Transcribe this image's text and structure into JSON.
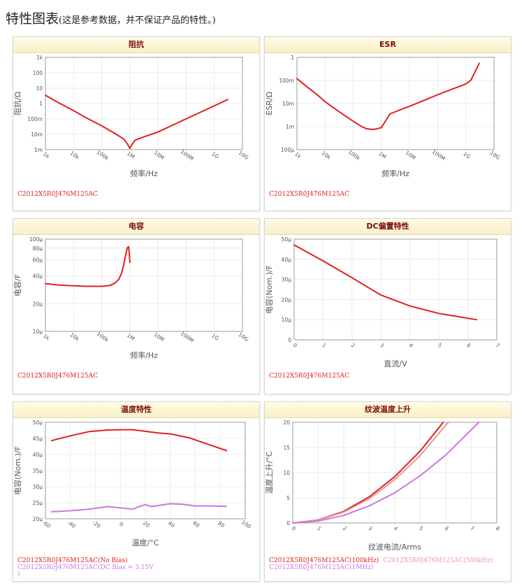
{
  "page": {
    "title": "特性图表",
    "note": "(这是参考数据，并不保证产品的特性。)"
  },
  "chart_data": [
    {
      "id": "impedance",
      "type": "line",
      "title": "阻抗",
      "xlabel": "频率/Hz",
      "ylabel": "阻抗/Ω",
      "xscale": "log",
      "yscale": "log",
      "xlim": [
        1000,
        10000000000
      ],
      "ylim": [
        0.001,
        1000
      ],
      "xticks": [
        1000,
        10000,
        100000,
        1000000,
        10000000,
        100000000,
        1000000000,
        10000000000
      ],
      "xticklabels": [
        "1k",
        "10k",
        "100k",
        "1M",
        "10M",
        "100M",
        "1G",
        "10G"
      ],
      "yticks": [
        0.001,
        0.01,
        0.1,
        1,
        10,
        100,
        1000
      ],
      "yticklabels": [
        "1m",
        "10m",
        "100m",
        "1",
        "10",
        "100",
        "1k"
      ],
      "series": [
        {
          "name": "C2012X5R0J476M125AC",
          "color": "#e0201f",
          "x": [
            1000,
            3000,
            10000,
            30000,
            100000,
            300000,
            600000,
            800000,
            1000000,
            1200000,
            1500000,
            2000000,
            3000000,
            10000000,
            100000000,
            1000000000,
            3000000000
          ],
          "y": [
            3.4,
            1.1,
            0.34,
            0.11,
            0.035,
            0.011,
            0.005,
            0.0025,
            0.0012,
            0.0022,
            0.004,
            0.005,
            0.0065,
            0.014,
            0.1,
            0.7,
            1.8
          ]
        }
      ],
      "legend": [
        "C2012X5R0J476M125AC"
      ]
    },
    {
      "id": "esr",
      "type": "line",
      "title": "ESR",
      "xlabel": "频率/Hz",
      "ylabel": "ESR/Ω",
      "xscale": "log",
      "yscale": "log",
      "xlim": [
        1000,
        10000000000
      ],
      "ylim": [
        0.0001,
        1
      ],
      "xticks": [
        1000,
        10000,
        100000,
        1000000,
        10000000,
        100000000,
        1000000000,
        10000000000
      ],
      "xticklabels": [
        "1k",
        "10k",
        "100k",
        "1M",
        "10M",
        "100M",
        "1G",
        "10G"
      ],
      "yticks": [
        0.0001,
        0.001,
        0.01,
        0.1,
        1
      ],
      "yticklabels": [
        "100μ",
        "1m",
        "10m",
        "100m",
        "1"
      ],
      "series": [
        {
          "name": "C2012X5R0J476M125AC",
          "color": "#e0201f",
          "x": [
            1000,
            2000,
            5000,
            10000,
            20000,
            50000,
            100000,
            200000,
            300000,
            500000,
            700000,
            1000000,
            1500000,
            2000000,
            5000000,
            10000000,
            30000000,
            100000000,
            300000000,
            600000000,
            1000000000,
            1500000000,
            2000000000,
            3000000000
          ],
          "y": [
            0.12,
            0.06,
            0.025,
            0.012,
            0.0065,
            0.003,
            0.0017,
            0.001,
            0.0008,
            0.00075,
            0.0008,
            0.0009,
            0.002,
            0.0035,
            0.0055,
            0.0075,
            0.013,
            0.024,
            0.04,
            0.055,
            0.07,
            0.1,
            0.2,
            0.55
          ]
        }
      ],
      "legend": [
        "C2012X5R0J476M125AC"
      ]
    },
    {
      "id": "capacitance",
      "type": "line",
      "title": "电容",
      "xlabel": "频率/Hz",
      "ylabel": "电容/F",
      "xscale": "log",
      "yscale": "log",
      "xlim": [
        1000,
        10000000000
      ],
      "ylim": [
        1e-05,
        0.0001
      ],
      "xticks": [
        1000,
        10000,
        100000,
        1000000,
        10000000,
        100000000,
        1000000000,
        10000000000
      ],
      "xticklabels": [
        "1k",
        "10k",
        "100k",
        "1M",
        "10M",
        "100M",
        "1G",
        "10G"
      ],
      "yticks": [
        1e-05,
        2e-05,
        4e-05,
        6e-05,
        8e-05,
        0.0001
      ],
      "yticklabels": [
        "10μ",
        "20μ",
        "40μ",
        "60μ",
        "80μ",
        "100μ"
      ],
      "series": [
        {
          "name": "C2012X5R0J476M125AC",
          "color": "#e0201f",
          "x": [
            1000,
            3000,
            10000,
            30000,
            100000,
            200000,
            300000,
            400000,
            500000,
            600000,
            700000,
            800000,
            900000,
            950000,
            1000000
          ],
          "y": [
            3.3e-05,
            3.18e-05,
            3.12e-05,
            3.08e-05,
            3.08e-05,
            3.15e-05,
            3.35e-05,
            3.65e-05,
            4.2e-05,
            5.2e-05,
            6.6e-05,
            8e-05,
            8.3e-05,
            7e-05,
            5.6e-05
          ]
        }
      ],
      "legend": [
        "C2012X5R0J476M125AC"
      ]
    },
    {
      "id": "dc-bias",
      "type": "line",
      "title": "DC偏置特性",
      "xlabel": "直流/V",
      "ylabel": "电容(Nom.)/F",
      "xlim": [
        0,
        7
      ],
      "ylim": [
        0,
        5e-05
      ],
      "xticks": [
        0,
        1,
        2,
        3,
        4,
        5,
        6,
        7
      ],
      "xticklabels": [
        "0",
        "1",
        "2",
        "3",
        "4",
        "5",
        "6",
        "7"
      ],
      "yticks": [
        0,
        1e-05,
        2e-05,
        3e-05,
        4e-05,
        5e-05
      ],
      "yticklabels": [
        "0",
        "10μ",
        "20μ",
        "30μ",
        "40μ",
        "50μ"
      ],
      "series": [
        {
          "name": "C2012X5R0J476M125AC",
          "color": "#e0201f",
          "x": [
            0,
            1,
            2,
            3,
            4,
            5,
            6,
            6.3
          ],
          "y": [
            4.71e-05,
            3.92e-05,
            3.08e-05,
            2.22e-05,
            1.68e-05,
            1.31e-05,
            1.07e-05,
            1e-05
          ]
        }
      ],
      "legend": [
        "C2012X5R0J476M125AC"
      ]
    },
    {
      "id": "temperature",
      "type": "line",
      "title": "温度特性",
      "xlabel": "温度/°C",
      "ylabel": "电容(Nom.)/F",
      "xlim": [
        -60,
        100
      ],
      "ylim": [
        2e-05,
        5e-05
      ],
      "xticks": [
        -60,
        -40,
        -20,
        0,
        20,
        40,
        60,
        80,
        100
      ],
      "xticklabels": [
        "-60",
        "-40",
        "-20",
        "0",
        "20",
        "40",
        "60",
        "80",
        "100"
      ],
      "yticks": [
        2e-05,
        2.5e-05,
        3e-05,
        3.5e-05,
        4e-05,
        4.5e-05,
        5e-05
      ],
      "yticklabels": [
        "20μ",
        "25μ",
        "30μ",
        "35μ",
        "40μ",
        "45μ",
        "50μ"
      ],
      "series": [
        {
          "name": "C2012X5R0J476M125AC(No Bias)",
          "color": "#e0201f",
          "x": [
            -55,
            -40,
            -25,
            -10,
            0,
            10,
            20,
            30,
            40,
            55,
            70,
            85
          ],
          "y": [
            4.43e-05,
            4.58e-05,
            4.71e-05,
            4.76e-05,
            4.77e-05,
            4.77e-05,
            4.72e-05,
            4.67e-05,
            4.64e-05,
            4.52e-05,
            4.32e-05,
            4.12e-05
          ]
        },
        {
          "name": "C2012X5R0J476M125AC(DC Bias = 3.15V)",
          "color": "#cc77e0",
          "x": [
            -55,
            -40,
            -25,
            -10,
            0,
            10,
            15,
            20,
            25,
            35,
            40,
            50,
            60,
            70,
            85
          ],
          "y": [
            2.22e-05,
            2.25e-05,
            2.3e-05,
            2.38e-05,
            2.34e-05,
            2.3e-05,
            2.38e-05,
            2.44e-05,
            2.38e-05,
            2.44e-05,
            2.47e-05,
            2.45e-05,
            2.4e-05,
            2.4e-05,
            2.39e-05
          ]
        }
      ],
      "legend": [
        "C2012X5R0J476M125AC(No Bias)",
        "C2012X5R0J476M125AC(DC Bias = 3.15V\n)"
      ]
    },
    {
      "id": "ripple",
      "type": "line",
      "title": "纹波温度上升",
      "xlabel": "纹波电流/Arms",
      "ylabel": "温度上升/°C",
      "xlim": [
        0,
        8
      ],
      "ylim": [
        0,
        20
      ],
      "xticks": [
        0,
        1,
        2,
        3,
        4,
        5,
        6,
        7,
        8
      ],
      "xticklabels": [
        "0",
        "1",
        "2",
        "3",
        "4",
        "5",
        "6",
        "7",
        "8"
      ],
      "yticks": [
        0,
        5,
        10,
        15,
        20
      ],
      "yticklabels": [
        "0",
        "5",
        "10",
        "15",
        "20"
      ],
      "series": [
        {
          "name": "C2012X5R0J476M125AC(100kHz)",
          "color": "#e0201f",
          "x": [
            0,
            1,
            2,
            3,
            4,
            5,
            5.9
          ],
          "y": [
            0,
            0.6,
            2.3,
            5.2,
            9.2,
            14.3,
            20
          ]
        },
        {
          "name": "C2012X5R0J476M125AC(500kHz)",
          "color": "#e59a9a",
          "x": [
            0,
            1,
            2,
            3,
            4,
            5,
            6.1
          ],
          "y": [
            0,
            0.54,
            2.15,
            4.8,
            8.6,
            13.4,
            20
          ]
        },
        {
          "name": "C2012X5R0J476M125AC(1MHz)",
          "color": "#cc77e0",
          "x": [
            0,
            1,
            2,
            3,
            4,
            5,
            6,
            7.3
          ],
          "y": [
            0,
            0.38,
            1.5,
            3.4,
            6.0,
            9.4,
            13.5,
            20
          ]
        }
      ],
      "legend": [
        "C2012X5R0J476M125AC(100kHz)",
        "C2012X5R0J476M125AC(500kHz)",
        "C2012X5R0J476M125AC(1MHz)"
      ]
    }
  ]
}
